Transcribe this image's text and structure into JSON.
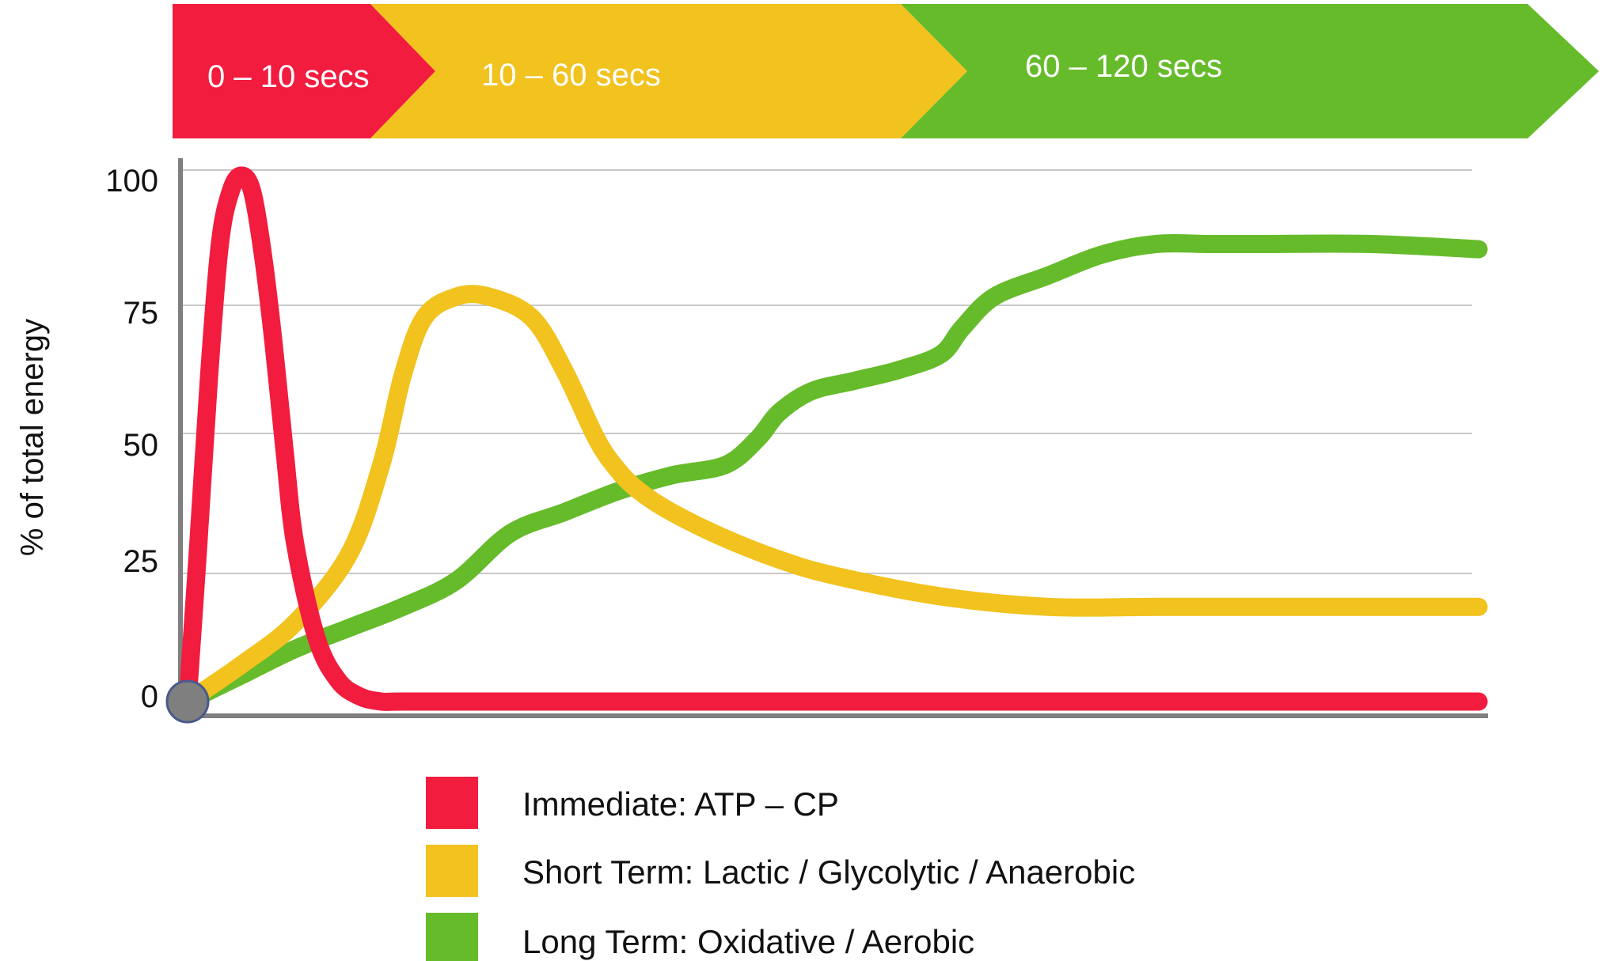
{
  "chart_data": {
    "type": "line",
    "phases": [
      {
        "label": "0 – 10 secs",
        "color": "#f21c3f"
      },
      {
        "label": "10  – 60 secs",
        "color": "#f2c21e"
      },
      {
        "label": "60  – 120 secs",
        "color": "#66bb2b"
      }
    ],
    "ylabel": "% of total energy",
    "xlabel": "",
    "yticks": [
      "0",
      "25",
      "50",
      "75",
      "100"
    ],
    "ylim": [
      0,
      100
    ],
    "xlim": [
      0,
      120
    ],
    "grid": true,
    "legend_position": "bottom",
    "series": [
      {
        "name": "Immediate:  ATP – CP",
        "color": "#f21c3f",
        "x": [
          0,
          1,
          2,
          3,
          4,
          5,
          6,
          7,
          8,
          9,
          10,
          12,
          14,
          16,
          18,
          20,
          30,
          60,
          90,
          120
        ],
        "y": [
          0,
          30,
          62,
          87,
          97,
          100,
          97,
          85,
          68,
          48,
          30,
          12,
          4,
          1,
          0,
          0,
          0,
          0,
          0,
          0
        ]
      },
      {
        "name": "Short Term: Lactic / Glycolytic / Anaerobic",
        "color": "#f2c21e",
        "x": [
          0,
          5,
          10,
          15,
          18,
          20,
          22,
          25,
          28,
          32,
          35,
          38,
          40,
          42,
          45,
          50,
          55,
          60,
          70,
          80,
          90,
          100,
          110,
          120
        ],
        "y": [
          0,
          7,
          15,
          28,
          45,
          62,
          73,
          77,
          77,
          73,
          63,
          50,
          44,
          40,
          36,
          31,
          27,
          24,
          20,
          18,
          18,
          18,
          18,
          18
        ]
      },
      {
        "name": "Long Term:  Oxidative / Aerobic",
        "color": "#66bb2b",
        "x": [
          0,
          5,
          10,
          15,
          20,
          25,
          30,
          35,
          40,
          45,
          50,
          53,
          55,
          58,
          62,
          66,
          70,
          72,
          75,
          80,
          85,
          90,
          95,
          100,
          110,
          120
        ],
        "y": [
          0,
          5,
          10,
          14,
          18,
          23,
          32,
          36,
          40,
          43,
          45,
          50,
          55,
          59,
          61,
          63,
          66,
          71,
          77,
          81,
          85,
          87,
          87,
          87,
          87,
          86
        ]
      }
    ]
  }
}
